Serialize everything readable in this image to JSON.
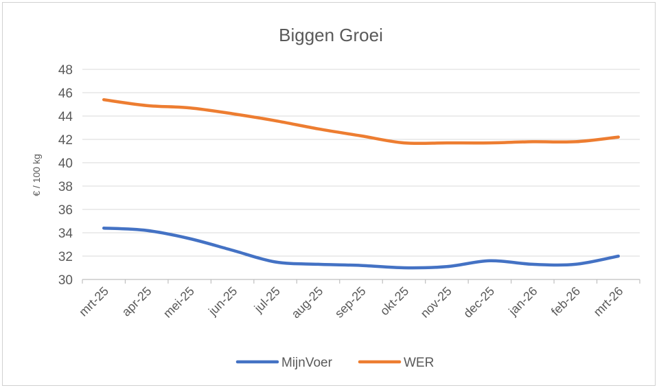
{
  "chart_data": {
    "type": "line",
    "title": "Biggen Groei",
    "ylabel": "€ / 100 kg",
    "xlabel": "",
    "ylim": [
      30,
      48
    ],
    "yticks": [
      30,
      32,
      34,
      36,
      38,
      40,
      42,
      44,
      46,
      48
    ],
    "grid": true,
    "legend_position": "bottom",
    "categories": [
      "mrt-25",
      "apr-25",
      "mei-25",
      "jun-25",
      "jul-25",
      "aug-25",
      "sep-25",
      "okt-25",
      "nov-25",
      "dec-25",
      "jan-26",
      "feb-26",
      "mrt-26"
    ],
    "series": [
      {
        "name": "MijnVoer",
        "color": "#4472C4",
        "values": [
          34.4,
          34.2,
          33.5,
          32.5,
          31.5,
          31.3,
          31.2,
          31.0,
          31.1,
          31.6,
          31.3,
          31.3,
          32.0
        ]
      },
      {
        "name": "WER",
        "color": "#ED7D31",
        "values": [
          45.4,
          44.9,
          44.7,
          44.2,
          43.6,
          42.9,
          42.3,
          41.7,
          41.7,
          41.7,
          41.8,
          41.8,
          42.2
        ]
      }
    ]
  }
}
